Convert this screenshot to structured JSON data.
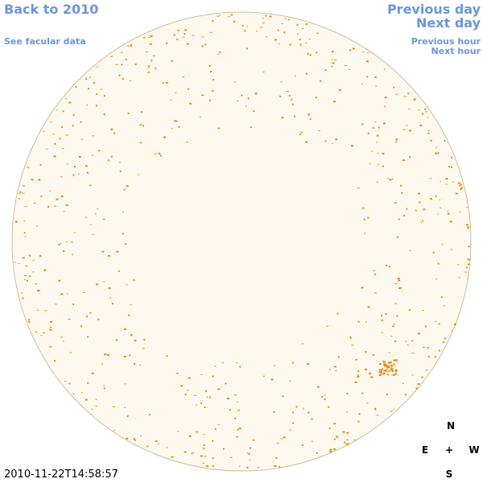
{
  "navigation": {
    "back": "Back to 2010",
    "see_facular_data": "See facular data",
    "previous_day": "Previous day",
    "next_day": "Next day",
    "previous_hour": "Previous hour",
    "next_hour": "Next hour"
  },
  "timestamp": "2010-11-22T14:58:57",
  "compass": {
    "north": "N",
    "east": "E",
    "center": "+",
    "west": "W",
    "south": "S"
  }
}
